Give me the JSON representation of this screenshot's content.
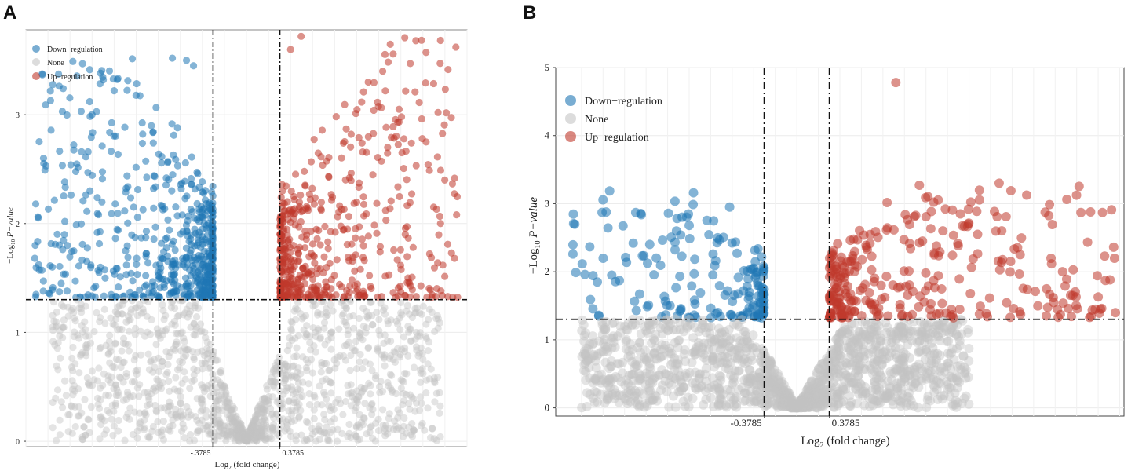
{
  "figure": {
    "panels": [
      {
        "id": "A",
        "label": "A"
      },
      {
        "id": "B",
        "label": "B"
      }
    ]
  },
  "colors": {
    "down": "#1f77b4",
    "none": "#c4c4c4",
    "up": "#c0392b",
    "threshold_line": "#111111"
  },
  "chart_data": [
    {
      "panel": "A",
      "type": "scatter",
      "title": "",
      "xlabel_main": "Log",
      "xlabel_sub": "2",
      "xlabel_rest": " (fold change)",
      "ylabel_main": "−Log",
      "ylabel_sub": "10",
      "ylabel_italic": " P−value",
      "xlim": [
        -2.5,
        2.5
      ],
      "ylim": [
        -0.05,
        3.78
      ],
      "yticks": [
        0,
        1,
        2,
        3
      ],
      "ytick_labels": [
        "0",
        "1",
        "2",
        "3"
      ],
      "xticks": [
        -0.3785,
        0.3785
      ],
      "xtick_labels": [
        "-.3785",
        "0.3785"
      ],
      "fc_threshold": 0.3785,
      "p_threshold": 1.301,
      "legend": {
        "position": "top-left",
        "entries": [
          {
            "key": "down",
            "label": "Down−regulation"
          },
          {
            "key": "none",
            "label": "None"
          },
          {
            "key": "up",
            "label": "Up−regulation"
          }
        ]
      },
      "series": [
        {
          "name": "Down−regulation",
          "key": "down",
          "x_range": [
            -2.4,
            -0.38
          ],
          "y_max": 3.5,
          "count": 600,
          "seed": 11
        },
        {
          "name": "None",
          "key": "none",
          "x_range": [
            -2.2,
            2.2
          ],
          "y_max": 1.3,
          "count": 1400,
          "seed": 23
        },
        {
          "name": "Up−regulation",
          "key": "up",
          "x_range": [
            0.38,
            2.4
          ],
          "y_max": 3.7,
          "count": 520,
          "seed": 37
        }
      ],
      "highlight_points": {
        "down": [
          [
            -2.3,
            2.6
          ],
          [
            -1.75,
            3.0
          ],
          [
            -0.68,
            3.5
          ],
          [
            -0.84,
            3.52
          ],
          [
            -2.2,
            1.6
          ],
          [
            -2.1,
            1.45
          ],
          [
            -1.5,
            3.22
          ],
          [
            -0.6,
            3.45
          ]
        ],
        "up": [
          [
            0.62,
            3.72
          ],
          [
            1.92,
            3.68
          ],
          [
            2.2,
            2.0
          ],
          [
            1.6,
            2.7
          ],
          [
            1.73,
            3.05
          ],
          [
            1.8,
            1.9
          ],
          [
            1.38,
            3.3
          ],
          [
            0.5,
            3.6
          ]
        ]
      }
    },
    {
      "panel": "B",
      "type": "scatter",
      "title": "",
      "xlabel_main": "Log",
      "xlabel_sub": "2",
      "xlabel_rest": " (fold change)",
      "ylabel_main": "−Log",
      "ylabel_sub": "10",
      "ylabel_italic": " P−value",
      "xlim": [
        -2.8,
        3.8
      ],
      "ylim": [
        -0.12,
        5.0
      ],
      "yticks": [
        0,
        1,
        2,
        3,
        4,
        5
      ],
      "ytick_labels": [
        "0",
        "1",
        "2",
        "3",
        "4",
        "5"
      ],
      "xticks": [
        -0.3785,
        0.3785
      ],
      "xtick_labels": [
        "-0.3785",
        "0.3785"
      ],
      "fc_threshold": 0.3785,
      "p_threshold": 1.301,
      "legend": {
        "position": "top-left",
        "entries": [
          {
            "key": "down",
            "label": "Down−regulation"
          },
          {
            "key": "none",
            "label": "None"
          },
          {
            "key": "up",
            "label": "Up−regulation"
          }
        ]
      },
      "series": [
        {
          "name": "Down−regulation",
          "key": "down",
          "x_range": [
            -2.6,
            -0.38
          ],
          "y_max": 3.2,
          "count": 170,
          "seed": 53
        },
        {
          "name": "None",
          "key": "none",
          "x_range": [
            -2.5,
            2.0
          ],
          "y_max": 1.3,
          "count": 1500,
          "seed": 71
        },
        {
          "name": "Up−regulation",
          "key": "up",
          "x_range": [
            0.38,
            3.7
          ],
          "y_max": 3.3,
          "count": 300,
          "seed": 89
        }
      ],
      "highlight_points": {
        "down": [
          [
            -2.6,
            2.26
          ],
          [
            -1.2,
            3.16
          ],
          [
            -0.78,
            2.95
          ],
          [
            -1.9,
            2.42
          ],
          [
            -1.25,
            2.68
          ],
          [
            -2.3,
            1.35
          ],
          [
            -2.15,
            1.95
          ]
        ],
        "up": [
          [
            1.15,
            4.78
          ],
          [
            2.35,
            3.3
          ],
          [
            3.3,
            2.87
          ],
          [
            3.55,
            2.87
          ],
          [
            2.38,
            2.6
          ],
          [
            1.9,
            2.85
          ],
          [
            3.7,
            1.4
          ],
          [
            2.9,
            1.75
          ],
          [
            3.5,
            1.63
          ]
        ]
      }
    }
  ]
}
